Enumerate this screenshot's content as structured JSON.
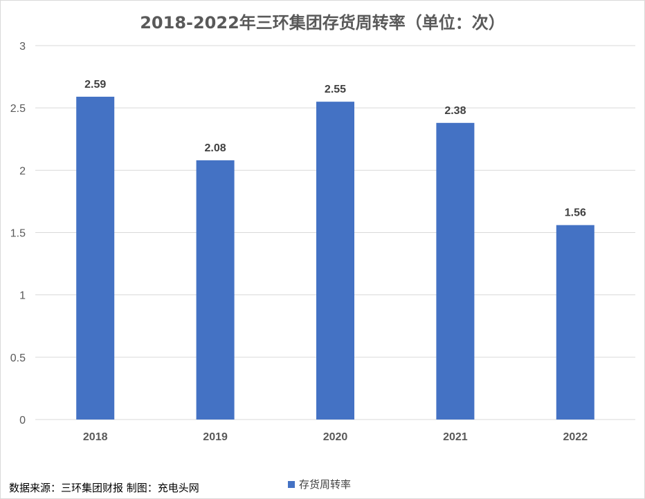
{
  "chart_data": {
    "type": "bar",
    "title": "2018-2022年三环集团存货周转率（单位：次）",
    "categories": [
      "2018",
      "2019",
      "2020",
      "2021",
      "2022"
    ],
    "series": [
      {
        "name": "存货周转率",
        "values": [
          2.59,
          2.08,
          2.55,
          2.38,
          1.56
        ],
        "data_labels": [
          "2.59",
          "2.08",
          "2.55",
          "2.38",
          "1.56"
        ]
      }
    ],
    "ylim": [
      0,
      3
    ],
    "yticks": [
      "0",
      "0.5",
      "1",
      "1.5",
      "2",
      "2.5",
      "3"
    ],
    "ytick_values": [
      0,
      0.5,
      1,
      1.5,
      2,
      2.5,
      3
    ],
    "grid": true,
    "legend_position": "bottom",
    "bar_color": "#4472C4",
    "grid_color": "#d9d9d9"
  },
  "footer": {
    "source": "数据来源：三环集团财报 制图：充电头网"
  }
}
